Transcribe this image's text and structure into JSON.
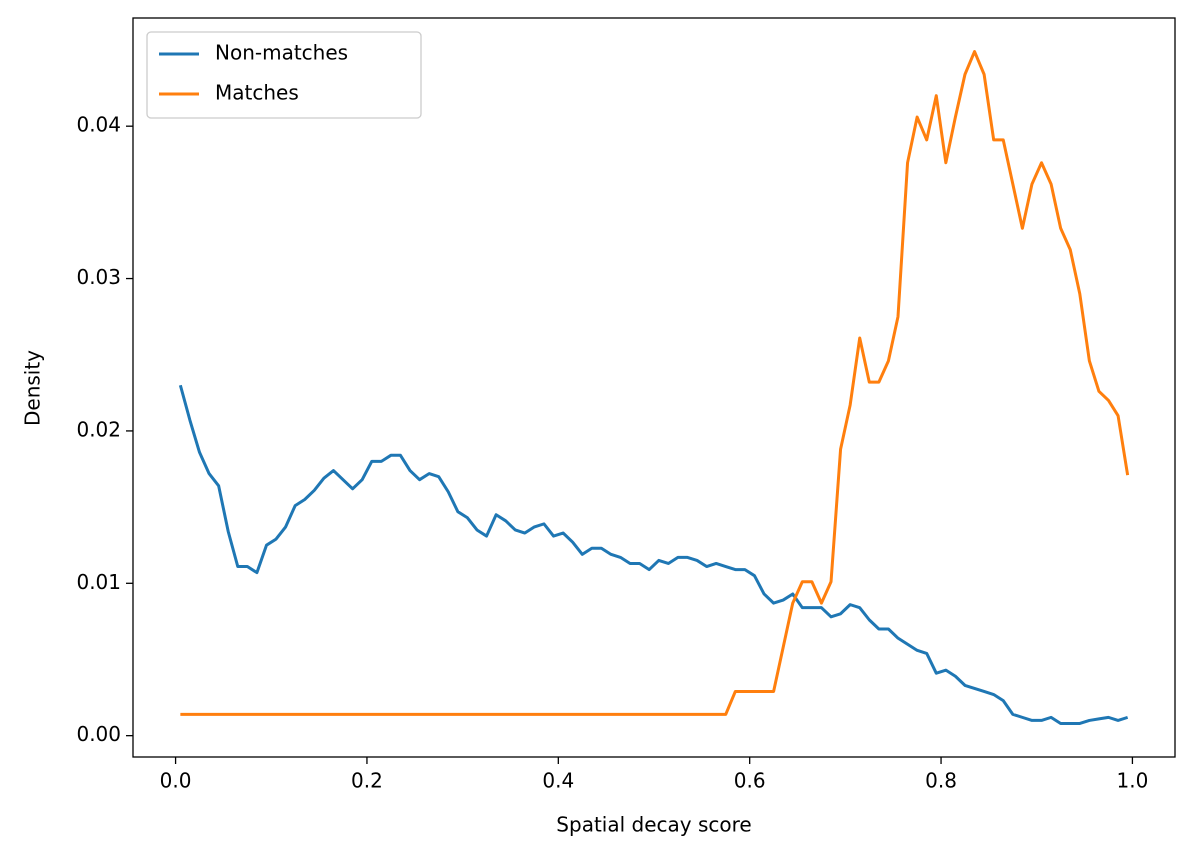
{
  "chart_data": {
    "type": "line",
    "xlabel": "Spatial decay score",
    "ylabel": "Density",
    "x": [
      0.005,
      0.015,
      0.025,
      0.035,
      0.045,
      0.055,
      0.065,
      0.075,
      0.085,
      0.095,
      0.105,
      0.115,
      0.125,
      0.135,
      0.145,
      0.155,
      0.165,
      0.175,
      0.185,
      0.195,
      0.205,
      0.215,
      0.225,
      0.235,
      0.245,
      0.255,
      0.265,
      0.275,
      0.285,
      0.295,
      0.305,
      0.315,
      0.325,
      0.335,
      0.345,
      0.355,
      0.365,
      0.375,
      0.385,
      0.395,
      0.405,
      0.415,
      0.425,
      0.435,
      0.445,
      0.455,
      0.465,
      0.475,
      0.485,
      0.495,
      0.505,
      0.515,
      0.525,
      0.535,
      0.545,
      0.555,
      0.565,
      0.575,
      0.585,
      0.595,
      0.605,
      0.615,
      0.625,
      0.635,
      0.645,
      0.655,
      0.665,
      0.675,
      0.685,
      0.695,
      0.705,
      0.715,
      0.725,
      0.735,
      0.745,
      0.755,
      0.765,
      0.775,
      0.785,
      0.795,
      0.805,
      0.815,
      0.825,
      0.835,
      0.845,
      0.855,
      0.865,
      0.875,
      0.885,
      0.895,
      0.905,
      0.915,
      0.925,
      0.935,
      0.945,
      0.955,
      0.965,
      0.975,
      0.985,
      0.995
    ],
    "series": [
      {
        "name": "Non-matches",
        "color": "#1f77b4",
        "values": [
          0.023,
          0.0207,
          0.0186,
          0.0172,
          0.0164,
          0.0134,
          0.0111,
          0.0111,
          0.0107,
          0.0125,
          0.0129,
          0.0137,
          0.0151,
          0.0155,
          0.0161,
          0.0169,
          0.0174,
          0.0168,
          0.0162,
          0.0168,
          0.018,
          0.018,
          0.0184,
          0.0184,
          0.0174,
          0.0168,
          0.0172,
          0.017,
          0.016,
          0.0147,
          0.0143,
          0.0135,
          0.0131,
          0.0145,
          0.0141,
          0.0135,
          0.0133,
          0.0137,
          0.0139,
          0.0131,
          0.0133,
          0.0127,
          0.0119,
          0.0123,
          0.0123,
          0.0119,
          0.0117,
          0.0113,
          0.0113,
          0.0109,
          0.0115,
          0.0113,
          0.0117,
          0.0117,
          0.0115,
          0.0111,
          0.0113,
          0.0111,
          0.0109,
          0.0109,
          0.0105,
          0.0093,
          0.0087,
          0.0089,
          0.0093,
          0.0084,
          0.0084,
          0.0084,
          0.0078,
          0.008,
          0.0086,
          0.0084,
          0.0076,
          0.007,
          0.007,
          0.0064,
          0.006,
          0.0056,
          0.0054,
          0.0041,
          0.0043,
          0.0039,
          0.0033,
          0.0031,
          0.0029,
          0.0027,
          0.0023,
          0.0014,
          0.0012,
          0.001,
          0.001,
          0.0012,
          0.0008,
          0.0008,
          0.0008,
          0.001,
          0.0011,
          0.0012,
          0.001,
          0.0012
        ]
      },
      {
        "name": "Matches",
        "color": "#ff7f0e",
        "values": [
          0.0014,
          0.0014,
          0.0014,
          0.0014,
          0.0014,
          0.0014,
          0.0014,
          0.0014,
          0.0014,
          0.0014,
          0.0014,
          0.0014,
          0.0014,
          0.0014,
          0.0014,
          0.0014,
          0.0014,
          0.0014,
          0.0014,
          0.0014,
          0.0014,
          0.0014,
          0.0014,
          0.0014,
          0.0014,
          0.0014,
          0.0014,
          0.0014,
          0.0014,
          0.0014,
          0.0014,
          0.0014,
          0.0014,
          0.0014,
          0.0014,
          0.0014,
          0.0014,
          0.0014,
          0.0014,
          0.0014,
          0.0014,
          0.0014,
          0.0014,
          0.0014,
          0.0014,
          0.0014,
          0.0014,
          0.0014,
          0.0014,
          0.0014,
          0.0014,
          0.0014,
          0.0014,
          0.0014,
          0.0014,
          0.0014,
          0.0014,
          0.0014,
          0.0029,
          0.0029,
          0.0029,
          0.0029,
          0.0029,
          0.0058,
          0.0087,
          0.0101,
          0.0101,
          0.0087,
          0.0101,
          0.0188,
          0.0217,
          0.0261,
          0.0232,
          0.0232,
          0.0246,
          0.0275,
          0.0376,
          0.0406,
          0.0391,
          0.042,
          0.0376,
          0.0406,
          0.0434,
          0.0449,
          0.0434,
          0.0391,
          0.0391,
          0.0362,
          0.0333,
          0.0362,
          0.0376,
          0.0362,
          0.0333,
          0.0319,
          0.029,
          0.0246,
          0.0226,
          0.022,
          0.021,
          0.0171
        ]
      }
    ],
    "xlim": [
      -0.0445,
      1.0445
    ],
    "ylim": [
      -0.0014,
      0.0471
    ],
    "xticks": [
      {
        "value": 0,
        "label": "0.0"
      },
      0.2,
      0.4,
      0.6,
      0.8,
      {
        "value": 1,
        "label": "1.0"
      }
    ],
    "yticks": [
      {
        "value": 0,
        "label": "0.00"
      },
      0.01,
      0.02,
      0.03,
      0.04
    ],
    "legend": "upper left"
  }
}
